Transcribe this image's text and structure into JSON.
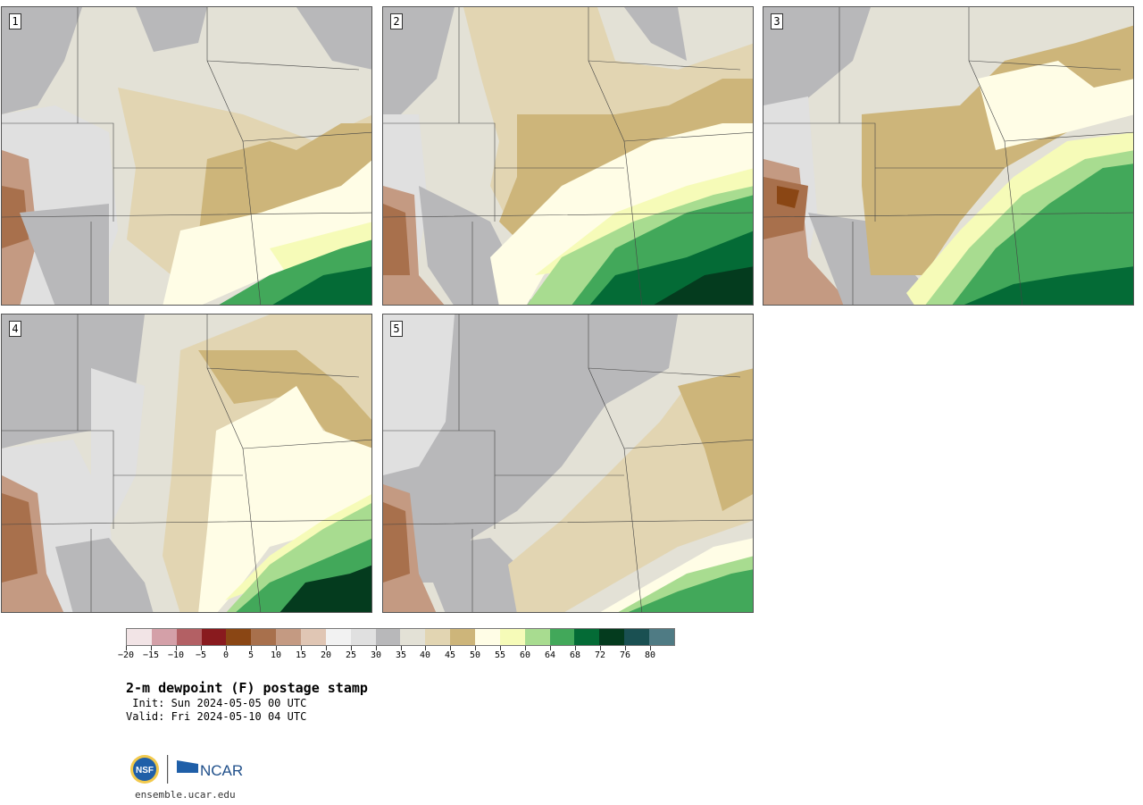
{
  "panels": [
    {
      "label": "1"
    },
    {
      "label": "2"
    },
    {
      "label": "3"
    },
    {
      "label": "4"
    },
    {
      "label": "5"
    }
  ],
  "colorbar": {
    "colors": [
      "#f2e4e6",
      "#d4a0a8",
      "#b36064",
      "#891a1e",
      "#8a4614",
      "#a8704c",
      "#c49a82",
      "#e0c6b4",
      "#f2f2f2",
      "#e0e0e0",
      "#b8b8ba",
      "#e3e1d6",
      "#e2d5b2",
      "#cdb57a",
      "#fffde6",
      "#f6fbb8",
      "#a8dc90",
      "#42a85a",
      "#046b36",
      "#043b1e",
      "#1a5052",
      "#4f7b84"
    ],
    "tick_labels": [
      "−20",
      "−15",
      "−10",
      "−5",
      "0",
      "5",
      "10",
      "15",
      "20",
      "25",
      "30",
      "35",
      "40",
      "45",
      "50",
      "55",
      "60",
      "64",
      "68",
      "72",
      "76",
      "80"
    ]
  },
  "title": "2-m dewpoint (F) postage stamp",
  "init": " Init: Sun 2024-05-05 00 UTC",
  "valid": "Valid: Fri 2024-05-10 04 UTC",
  "logo": {
    "nsf": "NSF",
    "ncar": "NCAR",
    "alt": "NSF | NCAR logo"
  },
  "website": "ensemble.ucar.edu",
  "palette": {
    "white_snow": "#f2f2f2",
    "light_gray": "#e0e0e0",
    "gray": "#b8b8ba",
    "pale": "#e3e1d6",
    "tan": "#e2d5b2",
    "brown": "#cdb57a",
    "cream": "#fffde6",
    "yellow": "#f6fbb8",
    "lt_green": "#a8dc90",
    "green": "#42a85a",
    "dk_green": "#046b36",
    "darkest_green": "#043b1e",
    "rust": "#a8704c",
    "mauve": "#c49a82",
    "dk_rust": "#8a4614"
  }
}
